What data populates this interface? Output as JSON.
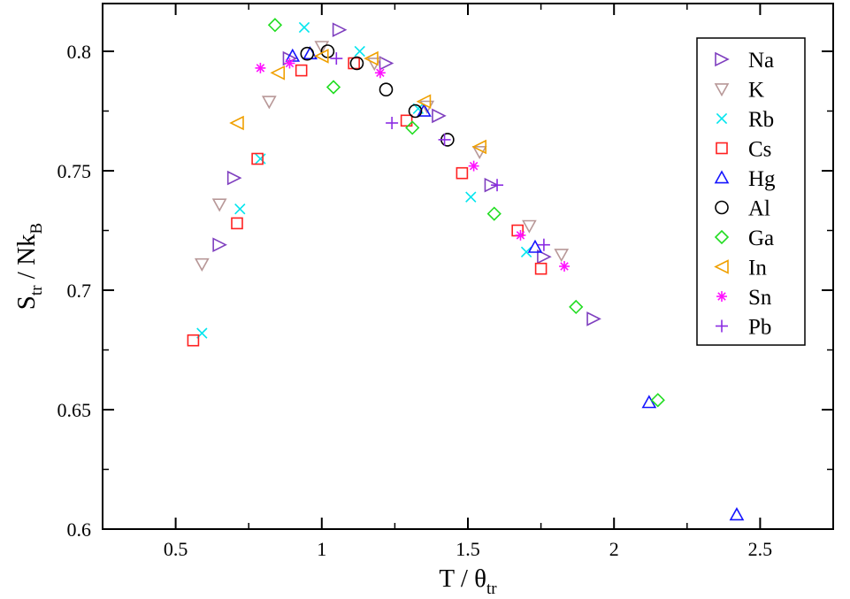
{
  "chart_data": {
    "type": "scatter",
    "xlim": [
      0.25,
      2.75
    ],
    "ylim": [
      0.6,
      0.82
    ],
    "x_ticks": [
      "0.5",
      "1",
      "1.5",
      "2",
      "2.5"
    ],
    "x_tick_values": [
      0.5,
      1.0,
      1.5,
      2.0,
      2.5
    ],
    "y_ticks": [
      "0.6",
      "0.65",
      "0.7",
      "0.75",
      "0.8"
    ],
    "y_tick_values": [
      0.6,
      0.65,
      0.7,
      0.75,
      0.8
    ],
    "xlabel": {
      "main": "T / θ",
      "sub": "tr"
    },
    "ylabel": {
      "main1": "S",
      "sub1": "tr",
      "main2": " / Nk",
      "sub2": "B"
    },
    "grid": false,
    "legend_position": "top-right",
    "series": [
      {
        "name": "Na",
        "marker": "triangle-right",
        "color": "#7f3fbf",
        "points": [
          [
            0.65,
            0.719
          ],
          [
            0.7,
            0.747
          ],
          [
            0.89,
            0.797
          ],
          [
            1.06,
            0.809
          ],
          [
            1.22,
            0.795
          ],
          [
            1.4,
            0.773
          ],
          [
            1.58,
            0.744
          ],
          [
            1.76,
            0.714
          ],
          [
            1.93,
            0.688
          ]
        ]
      },
      {
        "name": "K",
        "marker": "triangle-down",
        "color": "#b89898",
        "points": [
          [
            0.59,
            0.711
          ],
          [
            0.65,
            0.736
          ],
          [
            0.82,
            0.779
          ],
          [
            1.0,
            0.802
          ],
          [
            1.18,
            0.795
          ],
          [
            1.36,
            0.777
          ],
          [
            1.54,
            0.758
          ],
          [
            1.71,
            0.727
          ],
          [
            1.82,
            0.715
          ]
        ]
      },
      {
        "name": "Rb",
        "marker": "x",
        "color": "#00e5ee",
        "points": [
          [
            0.59,
            0.682
          ],
          [
            0.72,
            0.734
          ],
          [
            0.79,
            0.755
          ],
          [
            0.94,
            0.81
          ],
          [
            1.13,
            0.8
          ],
          [
            1.33,
            0.776
          ],
          [
            1.51,
            0.739
          ],
          [
            1.7,
            0.716
          ]
        ]
      },
      {
        "name": "Cs",
        "marker": "square",
        "color": "#ff2020",
        "points": [
          [
            0.56,
            0.679
          ],
          [
            0.71,
            0.728
          ],
          [
            0.78,
            0.755
          ],
          [
            0.93,
            0.792
          ],
          [
            1.11,
            0.795
          ],
          [
            1.29,
            0.771
          ],
          [
            1.48,
            0.749
          ],
          [
            1.67,
            0.725
          ],
          [
            1.75,
            0.709
          ]
        ]
      },
      {
        "name": "Hg",
        "marker": "triangle-up",
        "color": "#1515ff",
        "points": [
          [
            0.9,
            0.798
          ],
          [
            0.96,
            0.799
          ],
          [
            1.35,
            0.775
          ],
          [
            1.73,
            0.718
          ],
          [
            2.12,
            0.653
          ],
          [
            2.42,
            0.606
          ]
        ]
      },
      {
        "name": "Al",
        "marker": "circle",
        "color": "#000000",
        "points": [
          [
            0.95,
            0.799
          ],
          [
            1.02,
            0.8
          ],
          [
            1.12,
            0.795
          ],
          [
            1.22,
            0.784
          ],
          [
            1.32,
            0.775
          ],
          [
            1.43,
            0.763
          ]
        ]
      },
      {
        "name": "Ga",
        "marker": "diamond",
        "color": "#22dd22",
        "points": [
          [
            0.84,
            0.811
          ],
          [
            1.04,
            0.785
          ],
          [
            1.31,
            0.768
          ],
          [
            1.59,
            0.732
          ],
          [
            1.87,
            0.693
          ],
          [
            2.15,
            0.654
          ]
        ]
      },
      {
        "name": "In",
        "marker": "triangle-left",
        "color": "#f0a000",
        "points": [
          [
            0.71,
            0.77
          ],
          [
            0.85,
            0.791
          ],
          [
            1.0,
            0.798
          ],
          [
            1.17,
            0.797
          ],
          [
            1.35,
            0.779
          ],
          [
            1.54,
            0.76
          ]
        ]
      },
      {
        "name": "Sn",
        "marker": "asterisk",
        "color": "#ff10ff",
        "points": [
          [
            0.79,
            0.793
          ],
          [
            0.89,
            0.795
          ],
          [
            1.2,
            0.791
          ],
          [
            1.52,
            0.752
          ],
          [
            1.68,
            0.723
          ],
          [
            1.83,
            0.71
          ]
        ]
      },
      {
        "name": "Pb",
        "marker": "plus",
        "color": "#8a2be2",
        "points": [
          [
            1.05,
            0.797
          ],
          [
            1.24,
            0.77
          ],
          [
            1.42,
            0.763
          ],
          [
            1.6,
            0.744
          ],
          [
            1.76,
            0.719
          ]
        ]
      }
    ]
  }
}
